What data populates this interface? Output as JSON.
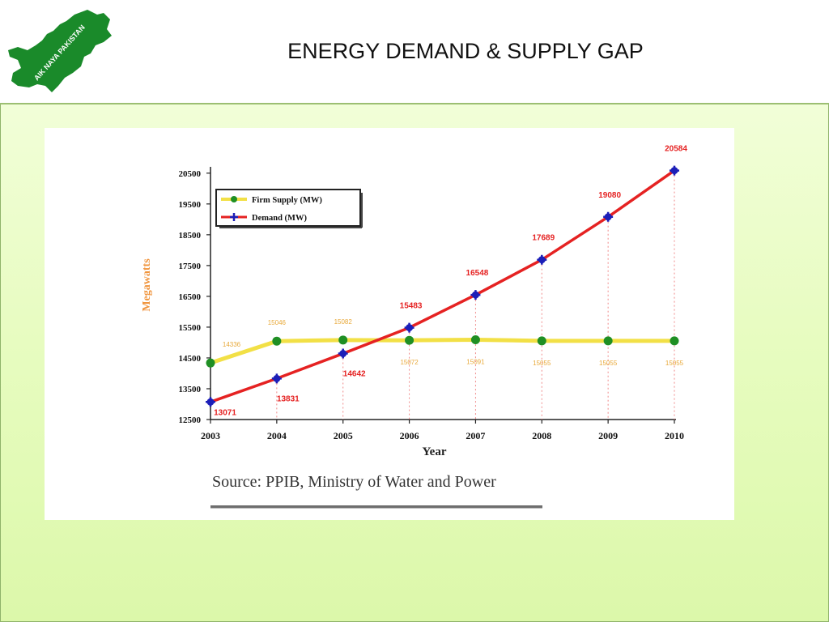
{
  "slide": {
    "title": "ENERGY DEMAND & SUPPLY GAP"
  },
  "logo": {
    "text": "AIK NAYA PAKISTAN",
    "color": "#1a8a2a"
  },
  "source": "Source: PPIB, Ministry of Water and Power",
  "chart_data": {
    "type": "line",
    "title": "",
    "xlabel": "Year",
    "ylabel": "Megawatts",
    "x": [
      "2003",
      "2004",
      "2005",
      "2006",
      "2007",
      "2008",
      "2009",
      "2010"
    ],
    "yticks": [
      12500,
      13500,
      14500,
      15500,
      16500,
      17500,
      18500,
      19500,
      20500
    ],
    "ylim": [
      12500,
      20600
    ],
    "legend_position": "top-left",
    "series": [
      {
        "name": "Firm Supply (MW)",
        "values": [
          14336,
          15046,
          15082,
          15072,
          15091,
          15055,
          15055,
          15055
        ],
        "color": "#f2e046",
        "marker_color": "#1f8f24",
        "label_color": "#e8a93a"
      },
      {
        "name": "Demand (MW)",
        "values": [
          13071,
          13831,
          14642,
          15483,
          16548,
          17689,
          19080,
          20584
        ],
        "color": "#e52222",
        "marker_color": "#1c1fb8",
        "label_color": "#e52222"
      }
    ]
  }
}
